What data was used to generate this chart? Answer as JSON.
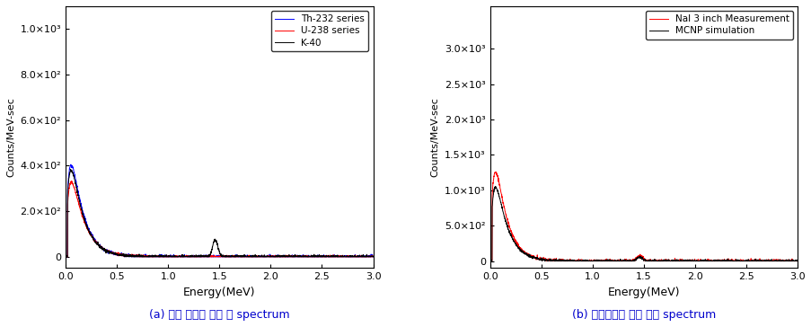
{
  "subplot1": {
    "title": "(a) 지각 방사선 선원 별 spectrum",
    "xlabel": "Energy(MeV)",
    "ylabel": "Counts/MeV-sec",
    "xlim": [
      0,
      3.0
    ],
    "ylim": [
      -50.0,
      1100.0
    ],
    "yticks": [
      0,
      200.0,
      400.0,
      600.0,
      800.0,
      1000.0
    ],
    "xticks": [
      0.0,
      0.5,
      1.0,
      1.5,
      2.0,
      2.5,
      3.0
    ],
    "legend_entries": [
      "K-40",
      "U-238 series",
      "Th-232 series"
    ],
    "legend_colors": [
      "#000000",
      "#ff0000",
      "#0000ff"
    ]
  },
  "subplot2": {
    "title": "(b) 배경방사선 선원 모델 spectrum",
    "xlabel": "Energy(MeV)",
    "ylabel": "Counts/MeV-sec",
    "xlim": [
      0,
      3.0
    ],
    "ylim": [
      -100.0,
      3600.0
    ],
    "yticks": [
      0,
      500.0,
      1000.0,
      1500.0,
      2000.0,
      2500.0,
      3000.0
    ],
    "xticks": [
      0.0,
      0.5,
      1.0,
      1.5,
      2.0,
      2.5,
      3.0
    ],
    "legend_entries": [
      "MCNP simulation",
      "NaI 3 inch Measurement"
    ],
    "legend_colors": [
      "#000000",
      "#ff0000"
    ]
  },
  "caption_color": "#0000cc",
  "figure_bg": "#ffffff",
  "spine_color": "#000000",
  "tick_color": "#000000",
  "label_color": "#000000"
}
